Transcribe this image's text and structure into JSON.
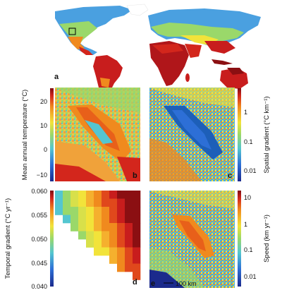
{
  "panels": [
    {
      "letter": "a"
    },
    {
      "letter": "b"
    },
    {
      "letter": "c"
    },
    {
      "letter": "d"
    },
    {
      "letter": "e"
    }
  ],
  "colorbars": [
    {
      "id": "mean-temp",
      "title": "Mean annual temperature (°C)",
      "ticks": [
        "20",
        "10",
        "0",
        "−10"
      ],
      "scale": "linear",
      "range": [
        -13,
        25
      ]
    },
    {
      "id": "spatial-gradient",
      "title": "Spatial gradient (°C km⁻¹)",
      "ticks": [
        "1",
        "0.1",
        "0.01"
      ],
      "scale": "log"
    },
    {
      "id": "temporal-gradient",
      "title": "Temporal gradient (°C yr⁻¹)",
      "ticks": [
        "0.060",
        "0.055",
        "0.050",
        "0.045",
        "0.040"
      ],
      "scale": "linear",
      "range": [
        0.04,
        0.06
      ]
    },
    {
      "id": "speed",
      "title": "Speed (km yr⁻¹)",
      "ticks": [
        "10",
        "1",
        "0.1",
        "0.01"
      ],
      "scale": "log"
    }
  ],
  "scalebar": {
    "label": "100 km"
  },
  "colors": {
    "cold": "#1d2f8f",
    "cool": "#2f8de0",
    "mid": "#54c8c8",
    "warm": "#f2e53a",
    "hot": "#f08a1e",
    "hottest": "#8b0f12"
  }
}
